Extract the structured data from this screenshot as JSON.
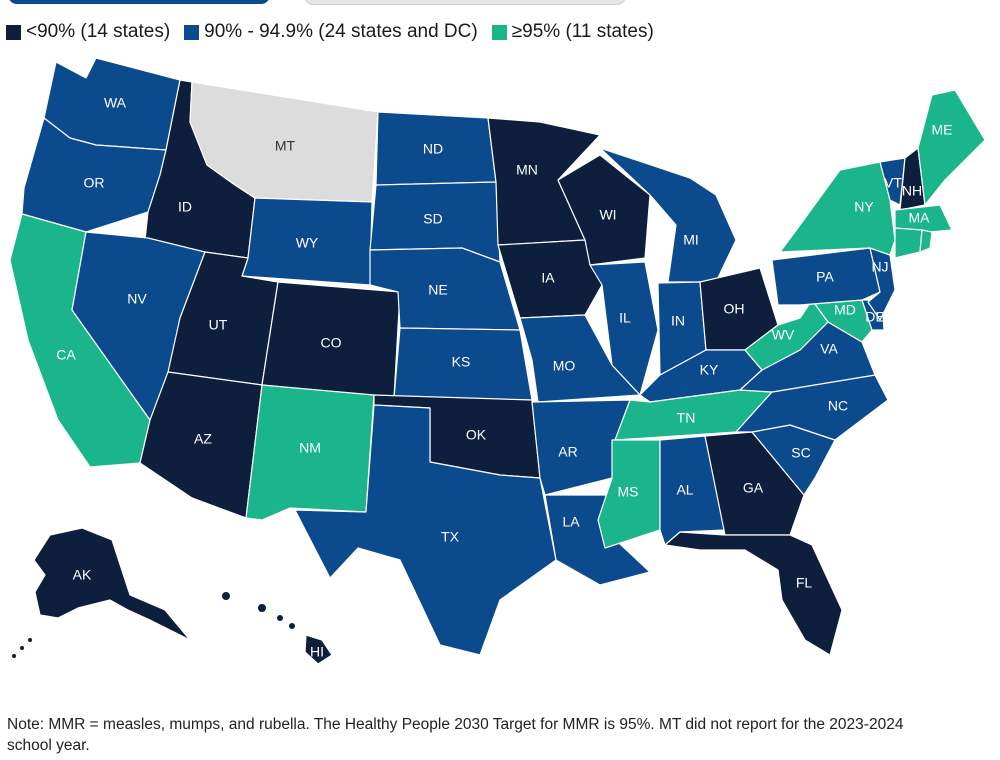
{
  "legend": [
    {
      "label": "<90% (14 states)",
      "color": "#0d1f3c"
    },
    {
      "label": "90% - 94.9% (24 states and DC)",
      "color": "#0b4a8c"
    },
    {
      "label": "≥95% (11 states)",
      "color": "#1bb58b"
    }
  ],
  "no_data_color": "#dcdcdc",
  "states": {
    "WA": {
      "label": "WA",
      "category": 1
    },
    "OR": {
      "label": "OR",
      "category": 1
    },
    "CA": {
      "label": "CA",
      "category": 2
    },
    "ID": {
      "label": "ID",
      "category": 0
    },
    "NV": {
      "label": "NV",
      "category": 1
    },
    "MT": {
      "label": "MT",
      "category": null
    },
    "WY": {
      "label": "WY",
      "category": 1
    },
    "UT": {
      "label": "UT",
      "category": 0
    },
    "AZ": {
      "label": "AZ",
      "category": 0
    },
    "CO": {
      "label": "CO",
      "category": 0
    },
    "NM": {
      "label": "NM",
      "category": 2
    },
    "ND": {
      "label": "ND",
      "category": 1
    },
    "SD": {
      "label": "SD",
      "category": 1
    },
    "NE": {
      "label": "NE",
      "category": 1
    },
    "KS": {
      "label": "KS",
      "category": 1
    },
    "OK": {
      "label": "OK",
      "category": 0
    },
    "TX": {
      "label": "TX",
      "category": 1
    },
    "MN": {
      "label": "MN",
      "category": 0
    },
    "IA": {
      "label": "IA",
      "category": 0
    },
    "MO": {
      "label": "MO",
      "category": 1
    },
    "AR": {
      "label": "AR",
      "category": 1
    },
    "LA": {
      "label": "LA",
      "category": 1
    },
    "WI": {
      "label": "WI",
      "category": 0
    },
    "IL": {
      "label": "IL",
      "category": 1
    },
    "MI": {
      "label": "MI",
      "category": 1
    },
    "IN": {
      "label": "IN",
      "category": 1
    },
    "OH": {
      "label": "OH",
      "category": 0
    },
    "KY": {
      "label": "KY",
      "category": 1
    },
    "TN": {
      "label": "TN",
      "category": 2
    },
    "MS": {
      "label": "MS",
      "category": 2
    },
    "AL": {
      "label": "AL",
      "category": 1
    },
    "GA": {
      "label": "GA",
      "category": 0
    },
    "FL": {
      "label": "FL",
      "category": 0
    },
    "SC": {
      "label": "SC",
      "category": 1
    },
    "NC": {
      "label": "NC",
      "category": 1
    },
    "VA": {
      "label": "VA",
      "category": 1
    },
    "WV": {
      "label": "WV",
      "category": 2
    },
    "MD": {
      "label": "MD",
      "category": 2
    },
    "DE": {
      "label": "DE",
      "category": 1
    },
    "PA": {
      "label": "PA",
      "category": 1
    },
    "NJ": {
      "label": "NJ",
      "category": 1
    },
    "NY": {
      "label": "NY",
      "category": 2
    },
    "VT": {
      "label": "VT",
      "category": 1
    },
    "NH": {
      "label": "NH",
      "category": 0
    },
    "ME": {
      "label": "ME",
      "category": 2
    },
    "MA": {
      "label": "MA",
      "category": 2
    },
    "CT": {
      "label": "",
      "category": 2
    },
    "RI": {
      "label": "",
      "category": 2
    },
    "AK": {
      "label": "AK",
      "category": 0
    },
    "HI": {
      "label": "HI",
      "category": 0
    }
  },
  "note": "Note: MMR = measles, mumps, and rubella. The Healthy People 2030 Target for MMR is 95%. MT did not report for the 2023-2024 school year."
}
